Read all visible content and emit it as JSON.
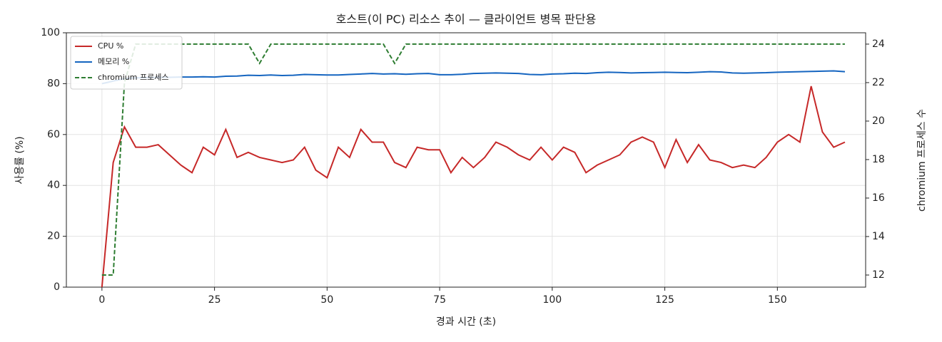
{
  "chart_data": {
    "type": "line",
    "title": "호스트(이 PC) 리소스 추이 — 클라이언트 병목 판단용",
    "x_label": "경과 시간 (초)",
    "y_label": "사용률 (%)",
    "y2_label": "chromium 프로세스 수",
    "x": [
      0,
      2.5,
      5,
      7.5,
      10,
      12.5,
      15,
      17.5,
      20,
      22.5,
      25,
      27.5,
      30,
      32.5,
      35,
      37.5,
      40,
      42.5,
      45,
      47.5,
      50,
      52.5,
      55,
      57.5,
      60,
      62.5,
      65,
      67.5,
      70,
      72.5,
      75,
      77.5,
      80,
      82.5,
      85,
      87.5,
      90,
      92.5,
      95,
      97.5,
      100,
      102.5,
      105,
      107.5,
      110,
      112.5,
      115,
      117.5,
      120,
      122.5,
      125,
      127.5,
      130,
      132.5,
      135,
      137.5,
      140,
      142.5,
      145,
      147.5,
      150,
      152.5,
      155,
      157.5,
      160,
      162.5,
      165
    ],
    "series": [
      {
        "name": "CPU %",
        "color": "#c62828",
        "values": [
          0,
          49,
          63,
          55,
          55,
          56,
          52,
          48,
          45,
          55,
          52,
          62,
          51,
          53,
          51,
          50,
          49,
          50,
          55,
          46,
          43,
          55,
          51,
          62,
          57,
          57,
          49,
          47,
          55,
          54,
          54,
          45,
          51,
          47,
          51,
          57,
          55,
          52,
          50,
          55,
          50,
          55,
          53,
          45,
          48,
          50,
          52,
          57,
          59,
          57,
          47,
          58,
          49,
          56,
          50,
          49,
          47,
          48,
          47,
          51,
          57,
          60,
          57,
          79,
          61,
          55,
          57
        ]
      },
      {
        "name": "메모리 %",
        "color": "#1565c0",
        "values": [
          80,
          81,
          82,
          82.3,
          82.4,
          82.5,
          82.5,
          82.6,
          82.6,
          82.7,
          82.6,
          82.9,
          83,
          83.3,
          83.2,
          83.4,
          83.2,
          83.3,
          83.6,
          83.5,
          83.4,
          83.4,
          83.6,
          83.8,
          84,
          83.8,
          83.9,
          83.7,
          83.9,
          84,
          83.5,
          83.5,
          83.7,
          84,
          84.1,
          84.2,
          84.1,
          84,
          83.6,
          83.5,
          83.8,
          83.9,
          84.1,
          84,
          84.3,
          84.5,
          84.4,
          84.2,
          84.3,
          84.4,
          84.5,
          84.4,
          84.3,
          84.5,
          84.7,
          84.6,
          84.2,
          84.1,
          84.2,
          84.3,
          84.5,
          84.6,
          84.7,
          84.8,
          84.9,
          85,
          84.7
        ]
      },
      {
        "name": "chromium 프로세스",
        "color": "#2e7d32",
        "dashed": true,
        "axis": "y2",
        "values": [
          12,
          12,
          22,
          24,
          24,
          24,
          24,
          24,
          24,
          24,
          24,
          24,
          24,
          24,
          23,
          24,
          24,
          24,
          24,
          24,
          24,
          24,
          24,
          24,
          24,
          24,
          23,
          24,
          24,
          24,
          24,
          24,
          24,
          24,
          24,
          24,
          24,
          24,
          24,
          24,
          24,
          24,
          24,
          24,
          24,
          24,
          24,
          24,
          24,
          24,
          24,
          24,
          24,
          24,
          24,
          24,
          24,
          24,
          24,
          24,
          24,
          24,
          24,
          24,
          24,
          24,
          24
        ]
      }
    ],
    "xlim": [
      -7.9,
      169.6
    ],
    "xticks": [
      0,
      25,
      50,
      75,
      100,
      125,
      150
    ],
    "ylim": [
      0,
      100
    ],
    "yticks": [
      0,
      20,
      40,
      60,
      80,
      100
    ],
    "y2lim": [
      11.37,
      24.59
    ],
    "y2ticks": [
      12,
      14,
      16,
      18,
      20,
      22,
      24
    ],
    "grid": true,
    "legend": "upper left"
  }
}
